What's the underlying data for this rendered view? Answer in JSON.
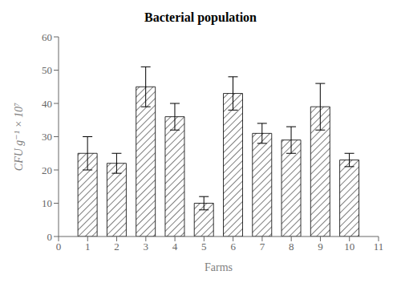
{
  "chart_data": {
    "type": "bar",
    "title": "Bacterial population",
    "xlabel": "Farms",
    "ylabel": "CFU g⁻¹ × 10⁷",
    "x": [
      1,
      2,
      3,
      4,
      5,
      6,
      7,
      8,
      9,
      10
    ],
    "values": [
      25,
      22,
      45,
      36,
      10,
      43,
      31,
      29,
      39,
      23
    ],
    "errors": [
      5,
      3,
      6,
      4,
      2,
      5,
      3,
      4,
      7,
      2
    ],
    "xlim": [
      0,
      11
    ],
    "xticks": [
      0,
      1,
      2,
      3,
      4,
      5,
      6,
      7,
      8,
      9,
      10,
      11
    ],
    "ylim": [
      0,
      60
    ],
    "yticks": [
      0,
      10,
      20,
      30,
      40,
      50,
      60
    ],
    "color": "#ffffff",
    "grid": false
  }
}
